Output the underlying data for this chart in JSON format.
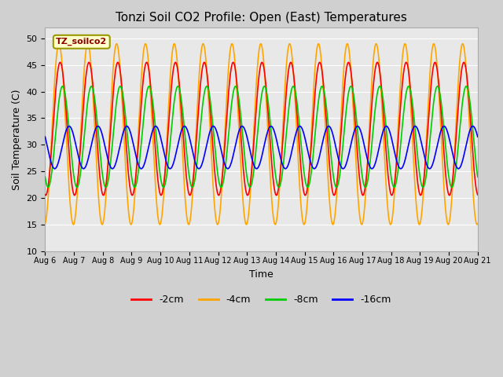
{
  "title": "Tonzi Soil CO2 Profile: Open (East) Temperatures",
  "xlabel": "Time",
  "ylabel": "Soil Temperature (C)",
  "ylim": [
    10,
    52
  ],
  "yticks": [
    10,
    15,
    20,
    25,
    30,
    35,
    40,
    45,
    50
  ],
  "x_tick_days": [
    6,
    7,
    8,
    9,
    10,
    11,
    12,
    13,
    14,
    15,
    16,
    17,
    18,
    19,
    20,
    21
  ],
  "legend_label": "TZ_soilco2",
  "series_labels": [
    "-2cm",
    "-4cm",
    "-8cm",
    "-16cm"
  ],
  "series_colors": [
    "#ff0000",
    "#ffa500",
    "#00cc00",
    "#0000ff"
  ],
  "fig_bg_color": "#d0d0d0",
  "axes_bg_color": "#e8e8e8",
  "grid_color": "#ffffff",
  "num_days": 15,
  "mean_2cm": 33.0,
  "amplitude_2cm": 12.5,
  "phase_2cm": 6.5,
  "mean_4cm": 32.0,
  "amplitude_4cm": 17.0,
  "phase_4cm": 5.5,
  "mean_8cm": 31.5,
  "amplitude_8cm": 9.5,
  "phase_8cm": 8.5,
  "mean_16cm": 29.5,
  "amplitude_16cm": 4.0,
  "phase_16cm": 14.0
}
